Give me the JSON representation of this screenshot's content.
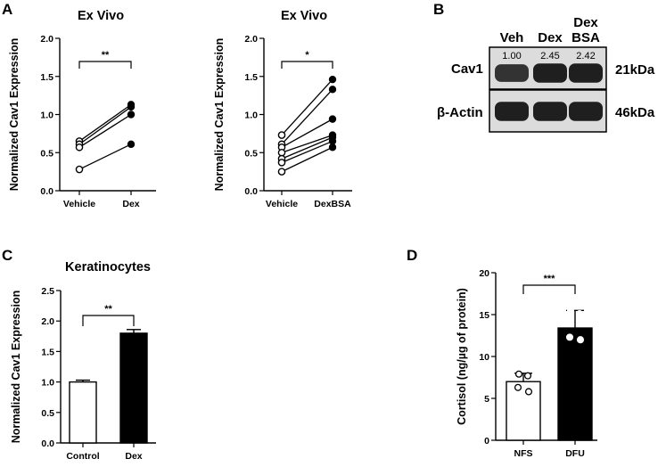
{
  "panels": {
    "A": "A",
    "B": "B",
    "C": "C",
    "D": "D"
  },
  "colors": {
    "dex": "#000000",
    "vehicle_fill": "#ffffff",
    "band": "#1a1a1a",
    "blot_bg": "#dcdcdc"
  },
  "chart_data": [
    {
      "type": "scatter",
      "subtype": "paired-dot",
      "title": "Ex  Vivo",
      "ylabel": "Normalized Cav1 Expression",
      "categories": [
        "Vehicle",
        "Dex"
      ],
      "ylim": [
        0,
        2.0
      ],
      "yticks": [
        "0.0",
        "0.5",
        "1.0",
        "1.5",
        "2.0"
      ],
      "pairs": [
        [
          0.65,
          1.13
        ],
        [
          0.61,
          1.1
        ],
        [
          0.57,
          1.0
        ],
        [
          0.28,
          0.61
        ]
      ],
      "significance": "**",
      "grid": false
    },
    {
      "type": "scatter",
      "subtype": "paired-dot",
      "title": "Ex  Vivo",
      "ylabel": "Normalized Cav1 Expression",
      "categories": [
        "Vehicle",
        "DexBSA"
      ],
      "ylim": [
        0,
        2.0
      ],
      "yticks": [
        "0.0",
        "0.5",
        "1.0",
        "1.5",
        "2.0"
      ],
      "pairs": [
        [
          0.73,
          1.46
        ],
        [
          0.61,
          1.33
        ],
        [
          0.57,
          0.94
        ],
        [
          0.5,
          0.73
        ],
        [
          0.42,
          0.7
        ],
        [
          0.37,
          0.65
        ],
        [
          0.25,
          0.57
        ]
      ],
      "significance": "*",
      "grid": false
    },
    {
      "type": "bar",
      "title": "Keratinocytes",
      "ylabel": "Normalized Cav1 Expression",
      "categories": [
        "Control",
        "Dex"
      ],
      "values": [
        1.0,
        1.8
      ],
      "errors": [
        0.03,
        0.06
      ],
      "ylim": [
        0,
        2.5
      ],
      "yticks": [
        "0.0",
        "0.5",
        "1.0",
        "1.5",
        "2.0",
        "2.5"
      ],
      "significance": "**",
      "grid": false
    },
    {
      "type": "bar",
      "title": "",
      "ylabel": "Cortisol (ng/µg of protein)",
      "categories": [
        "NFS",
        "DFU"
      ],
      "values": [
        7.0,
        13.4
      ],
      "errors": [
        1.0,
        2.1
      ],
      "points": [
        [
          7.9,
          7.7,
          6.3,
          5.8
        ],
        [
          15.5,
          15.1,
          12.3,
          12.0
        ]
      ],
      "ylim": [
        0,
        20
      ],
      "yticks": [
        "0",
        "5",
        "10",
        "15",
        "20"
      ],
      "significance": "***",
      "grid": false
    }
  ],
  "blot": {
    "lanes": [
      "Veh",
      "Dex",
      "Dex\nBSA"
    ],
    "lane_lines": [
      [
        "Veh"
      ],
      [
        "Dex"
      ],
      [
        "Dex",
        "BSA"
      ]
    ],
    "ratios": [
      "1.00",
      "2.45",
      "2.42"
    ],
    "rows": [
      {
        "protein": "Cav1",
        "kda": "21kDa",
        "intensities": [
          0.72,
          0.95,
          0.95
        ]
      },
      {
        "protein": "β-Actin",
        "kda": "46kDa",
        "intensities": [
          0.95,
          0.95,
          0.95
        ]
      }
    ]
  }
}
